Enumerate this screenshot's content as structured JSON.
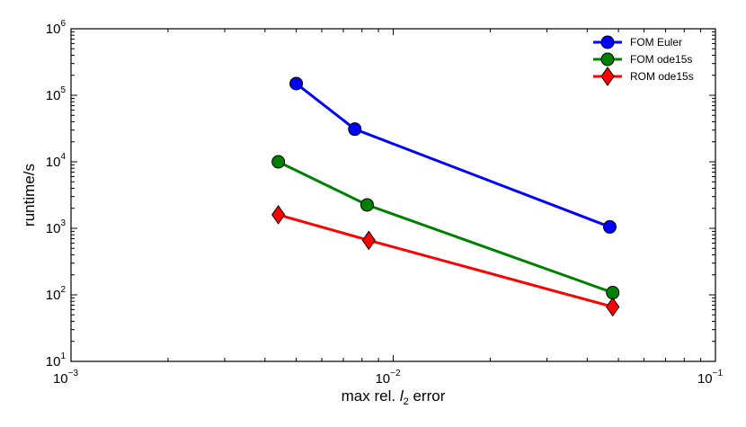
{
  "chart_data": {
    "type": "line",
    "xscale": "log",
    "yscale": "log",
    "xlim": [
      0.001,
      0.1
    ],
    "ylim": [
      10,
      1000000
    ],
    "x_ticks": [
      {
        "value": 0.001,
        "base": "10",
        "exp": "−3"
      },
      {
        "value": 0.01,
        "base": "10",
        "exp": "−2"
      },
      {
        "value": 0.1,
        "base": "10",
        "exp": "−1"
      }
    ],
    "y_ticks": [
      {
        "value": 10,
        "base": "10",
        "exp": "1"
      },
      {
        "value": 100,
        "base": "10",
        "exp": "2"
      },
      {
        "value": 1000,
        "base": "10",
        "exp": "3"
      },
      {
        "value": 10000,
        "base": "10",
        "exp": "4"
      },
      {
        "value": 100000,
        "base": "10",
        "exp": "5"
      },
      {
        "value": 1000000,
        "base": "10",
        "exp": "6"
      }
    ],
    "xlabel": {
      "pre": "max rel. ",
      "italic": "l",
      "sub": "2",
      "post": " error"
    },
    "ylabel": "runtime/s",
    "grid": false,
    "legend_position": "top-right",
    "series": [
      {
        "name": "FOM Euler",
        "color": "#0000ff",
        "marker": "circle",
        "x": [
          0.005,
          0.0076,
          0.047
        ],
        "y": [
          150000,
          31000,
          1050
        ]
      },
      {
        "name": "FOM ode15s",
        "color": "#008000",
        "marker": "circle",
        "x": [
          0.0044,
          0.0083,
          0.048
        ],
        "y": [
          10000,
          2250,
          108
        ]
      },
      {
        "name": "ROM ode15s",
        "color": "#ff0000",
        "marker": "diamond",
        "x": [
          0.0044,
          0.0084,
          0.048
        ],
        "y": [
          1600,
          660,
          66
        ]
      }
    ]
  }
}
